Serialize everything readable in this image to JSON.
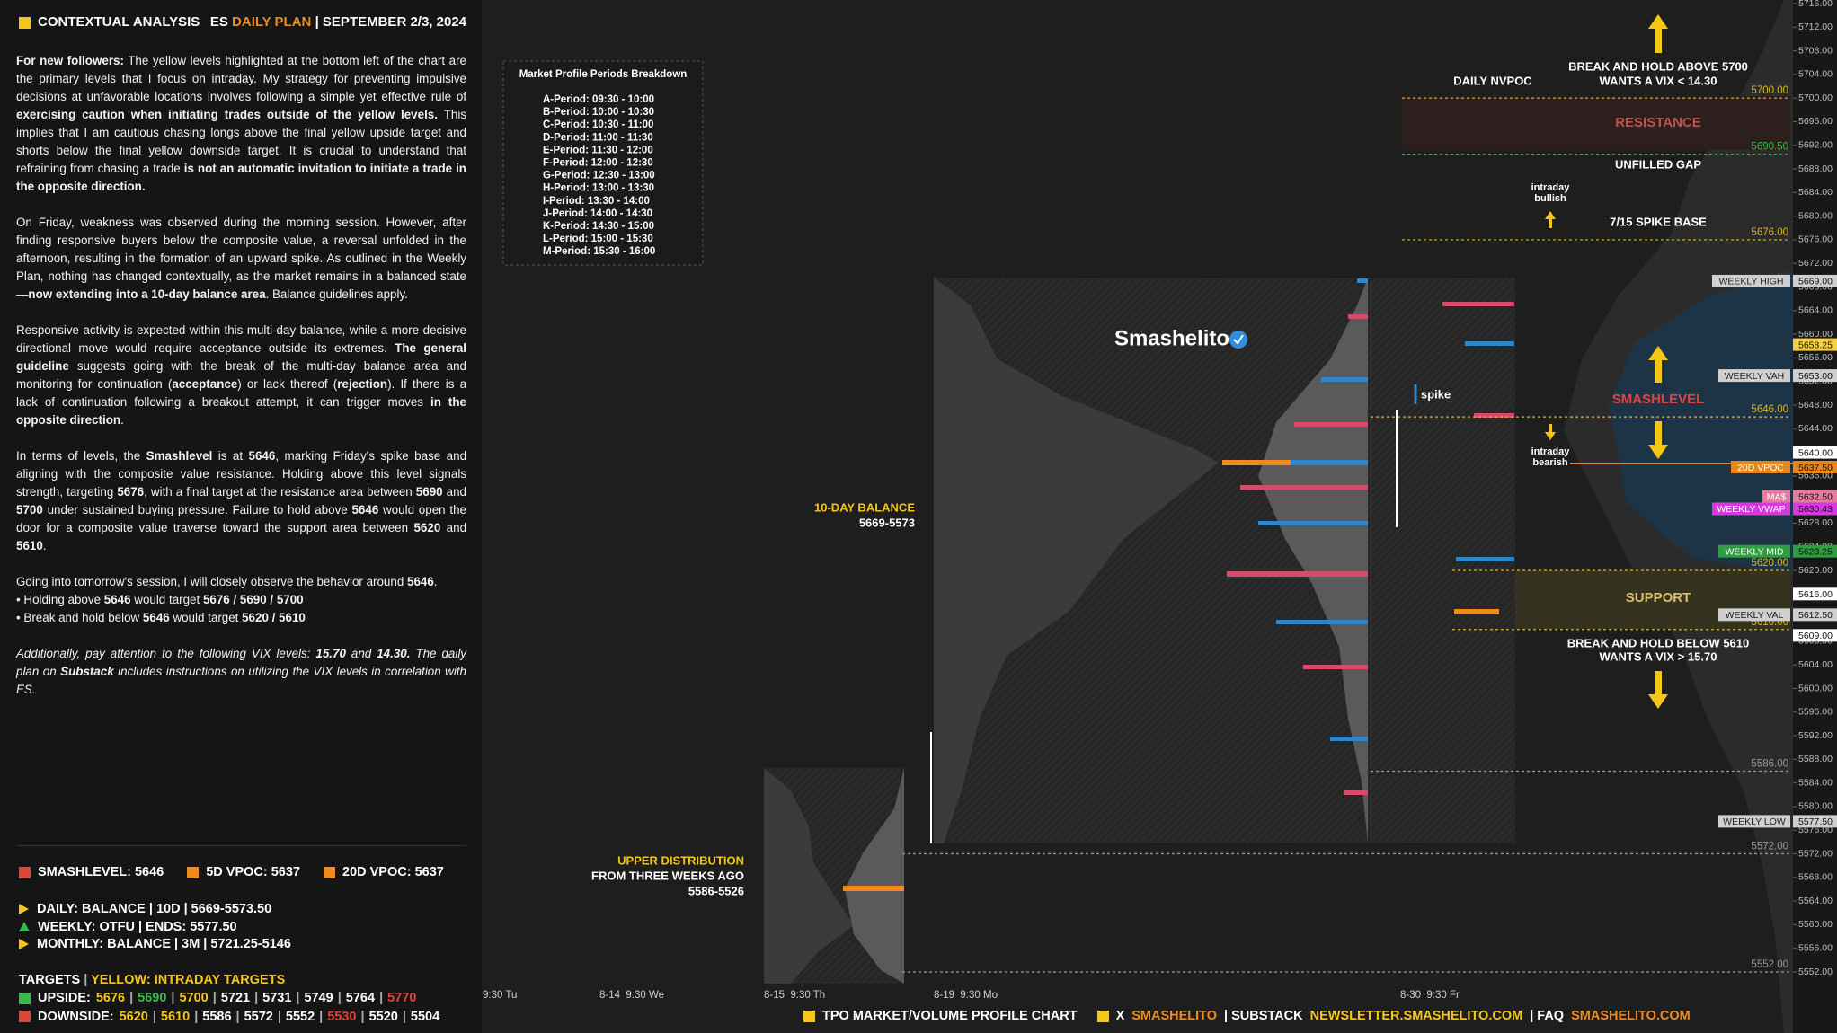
{
  "panel": {
    "header": {
      "title": "CONTEXTUAL ANALYSIS",
      "symbol": "ES",
      "plan": "DAILY PLAN",
      "date": "| SEPTEMBER 2/3, 2024"
    },
    "paragraphs": [
      [
        {
          "text": "For new followers:",
          "bold": true
        },
        {
          "text": " The yellow levels highlighted at the bottom left of the chart are the primary levels that I focus on intraday. My strategy for preventing impulsive decisions at unfavorable locations involves following a simple yet effective rule of "
        },
        {
          "text": "exercising caution when initiating trades outside of the yellow levels.",
          "bold": true
        },
        {
          "text": " This implies that I am cautious chasing longs above the final yellow upside target and shorts below the final yellow downside target. It is crucial to understand that refraining from chasing a trade "
        },
        {
          "text": "is not an automatic invitation to initiate a trade in the opposite direction.",
          "bold": true
        }
      ],
      [
        {
          "text": "On Friday, weakness was observed during the morning session. However, after finding responsive buyers below the composite value, a reversal unfolded in the afternoon, resulting in the formation of an upward spike. As outlined in the Weekly Plan, nothing has changed contextually, as the market remains in a balanced state—"
        },
        {
          "text": "now extending into a 10-day balance area",
          "bold": true
        },
        {
          "text": ". Balance guidelines apply."
        }
      ],
      [
        {
          "text": "Responsive activity is expected within this multi-day balance, while a more decisive directional move would require acceptance outside its extremes. "
        },
        {
          "text": "The general guideline",
          "bold": true
        },
        {
          "text": " suggests going with the break of the multi-day balance area and monitoring for continuation ("
        },
        {
          "text": "acceptance",
          "bold": true
        },
        {
          "text": ") or lack thereof ("
        },
        {
          "text": "rejection",
          "bold": true
        },
        {
          "text": "). If there is a lack of continuation following a breakout attempt, it can trigger moves "
        },
        {
          "text": "in the opposite direction",
          "bold": true
        },
        {
          "text": "."
        }
      ],
      [
        {
          "text": "In terms of levels, the "
        },
        {
          "text": "Smashlevel",
          "bold": true
        },
        {
          "text": " is at "
        },
        {
          "text": "5646",
          "bold": true
        },
        {
          "text": ", marking Friday's spike base and aligning with the composite value resistance. Holding above this level signals strength, targeting "
        },
        {
          "text": "5676",
          "bold": true
        },
        {
          "text": ", with a final target at the resistance area between "
        },
        {
          "text": "5690",
          "bold": true
        },
        {
          "text": " and "
        },
        {
          "text": "5700",
          "bold": true
        },
        {
          "text": " under sustained buying pressure. Failure to hold above "
        },
        {
          "text": "5646",
          "bold": true
        },
        {
          "text": " would open the door for a composite value traverse toward the support area between "
        },
        {
          "text": "5620",
          "bold": true
        },
        {
          "text": " and "
        },
        {
          "text": "5610",
          "bold": true
        },
        {
          "text": "."
        }
      ]
    ],
    "outlook": [
      [
        {
          "text": "Going into tomorrow's session, I will closely observe the behavior around "
        },
        {
          "text": "5646",
          "bold": true
        },
        {
          "text": "."
        }
      ],
      [
        {
          "text": "• Holding above "
        },
        {
          "text": "5646",
          "bold": true
        },
        {
          "text": " would target "
        },
        {
          "text": "5676 / 5690 / 5700",
          "bold": true
        }
      ],
      [
        {
          "text": "• Break and hold below "
        },
        {
          "text": "5646",
          "bold": true
        },
        {
          "text": " would target "
        },
        {
          "text": "5620 / 5610",
          "bold": true
        }
      ]
    ],
    "note": [
      {
        "text": "Additionally, pay attention to the following VIX levels: "
      },
      {
        "text": "15.70",
        "bold": true
      },
      {
        "text": " and "
      },
      {
        "text": "14.30.",
        "bold": true
      },
      {
        "text": " The daily plan on "
      },
      {
        "text": "Substack",
        "bold": true
      },
      {
        "text": " includes instructions on utilizing the VIX levels in correlation with ES."
      }
    ],
    "legend": [
      {
        "text": "SMASHLEVEL: 5646",
        "color": "#e0443a"
      },
      {
        "text": "5D VPOC: 5637",
        "color": "#f08a1c"
      },
      {
        "text": "20D VPOC: 5637",
        "color": "#f08a1c"
      }
    ],
    "context": [
      {
        "text": "DAILY: BALANCE | 10D | 5669-5573.50",
        "color": "#f5c518",
        "shape": "right"
      },
      {
        "text": "WEEKLY: OTFU | ENDS: 5577.50",
        "color": "#3bb84a",
        "shape": "up"
      },
      {
        "text": "MONTHLY: BALANCE | 3M | 5721.25-5146",
        "color": "#f5c518",
        "shape": "right"
      }
    ],
    "targets_title": "TARGETS",
    "targets_note": "YELLOW: INTRADAY TARGETS",
    "targets": [
      {
        "label": "UPSIDE:",
        "color": "#3bb84a",
        "values": [
          "5676",
          "5690",
          "5700",
          "5721",
          "5731",
          "5749",
          "5764",
          "5770"
        ],
        "colors": [
          "#f5c518",
          "#3bb84a",
          "#f5c518",
          "#ffffff",
          "#ffffff",
          "#ffffff",
          "#ffffff",
          "#e0443a"
        ]
      },
      {
        "label": "DOWNSIDE:",
        "color": "#e0443a",
        "values": [
          "5620",
          "5610",
          "5586",
          "5572",
          "5552",
          "5530",
          "5520",
          "5504"
        ],
        "colors": [
          "#f5c518",
          "#f5c518",
          "#ffffff",
          "#ffffff",
          "#ffffff",
          "#e0443a",
          "#ffffff",
          "#ffffff"
        ]
      }
    ]
  },
  "periods": {
    "title": "Market Profile Periods Breakdown",
    "items": [
      "A-Period: 09:30 - 10:00",
      "B-Period: 10:00 - 10:30",
      "C-Period: 10:30 - 11:00",
      "D-Period: 11:00 - 11:30",
      "E-Period: 11:30 - 12:00",
      "F-Period: 12:00 - 12:30",
      "G-Period: 12:30 - 13:00",
      "H-Period: 13:00 - 13:30",
      "I-Period: 13:30 - 14:00",
      "J-Period: 14:00 - 14:30",
      "K-Period: 14:30 - 15:00",
      "L-Period: 15:00 - 15:30",
      "M-Period: 15:30 - 16:00"
    ]
  },
  "chart_data": {
    "type": "tpo",
    "ylim": [
      5552,
      5716
    ],
    "yticks": [
      {
        "value": 5552,
        "label": "5552.00"
      },
      {
        "value": 5556,
        "label": "5556.00"
      },
      {
        "value": 5560,
        "label": "5560.00"
      },
      {
        "value": 5564,
        "label": "5564.00"
      },
      {
        "value": 5568,
        "label": "5568.00"
      },
      {
        "value": 5572,
        "label": "5572.00"
      },
      {
        "value": 5576,
        "label": "5576.00"
      },
      {
        "value": 5580,
        "label": "5580.00"
      },
      {
        "value": 5584,
        "label": "5584.00"
      },
      {
        "value": 5588,
        "label": "5588.00"
      },
      {
        "value": 5592,
        "label": "5592.00"
      },
      {
        "value": 5596,
        "label": "5596.00"
      },
      {
        "value": 5600,
        "label": "5600.00"
      },
      {
        "value": 5604,
        "label": "5604.00"
      },
      {
        "value": 5608,
        "label": "5608.00"
      },
      {
        "value": 5612,
        "label": "5612.00"
      },
      {
        "value": 5616,
        "label": "5616.00"
      },
      {
        "value": 5620,
        "label": "5620.00"
      },
      {
        "value": 5624,
        "label": "5624.00"
      },
      {
        "value": 5628,
        "label": "5628.00"
      },
      {
        "value": 5632,
        "label": "5632.00"
      },
      {
        "value": 5636,
        "label": "5636.00"
      },
      {
        "value": 5640,
        "label": "5640.00"
      },
      {
        "value": 5644,
        "label": "5644.00"
      },
      {
        "value": 5648,
        "label": "5648.00"
      },
      {
        "value": 5652,
        "label": "5652.00"
      },
      {
        "value": 5656,
        "label": "5656.00"
      },
      {
        "value": 5660,
        "label": "5660.00"
      },
      {
        "value": 5664,
        "label": "5664.00"
      },
      {
        "value": 5668,
        "label": "5668.00"
      },
      {
        "value": 5672,
        "label": "5672.00"
      },
      {
        "value": 5676,
        "label": "5676.00"
      },
      {
        "value": 5680,
        "label": "5680.00"
      },
      {
        "value": 5684,
        "label": "5684.00"
      },
      {
        "value": 5688,
        "label": "5688.00"
      },
      {
        "value": 5692,
        "label": "5692.00"
      },
      {
        "value": 5696,
        "label": "5696.00"
      },
      {
        "value": 5700,
        "label": "5700.00"
      },
      {
        "value": 5704,
        "label": "5704.00"
      },
      {
        "value": 5708,
        "label": "5708.00"
      },
      {
        "value": 5712,
        "label": "5712.00"
      },
      {
        "value": 5716,
        "label": "5716.00"
      }
    ],
    "levels": [
      {
        "value": 5700,
        "label": "5700.00",
        "color": "#d9b526"
      },
      {
        "value": 5690.5,
        "label": "5690.50",
        "color": "#3bb84a"
      },
      {
        "value": 5676,
        "label": "5676.00",
        "color": "#d9b526"
      },
      {
        "value": 5646,
        "label": "5646.00",
        "color": "#d9b526"
      },
      {
        "value": 5620,
        "label": "5620.00",
        "color": "#d9b526"
      },
      {
        "value": 5610,
        "label": "5610.00",
        "color": "#d9b526"
      },
      {
        "value": 5586,
        "label": "5586.00",
        "color": "#9a9a9a"
      },
      {
        "value": 5572,
        "label": "5572.00",
        "color": "#9a9a9a"
      },
      {
        "value": 5552,
        "label": "5552.00",
        "color": "#9a9a9a"
      }
    ],
    "badges": [
      {
        "name": "WEEKLY HIGH",
        "value": 5669,
        "label": "5669.00",
        "color": "#cfcfcf"
      },
      {
        "value": 5658.25,
        "label": "5658.25",
        "color": "#f5d040"
      },
      {
        "name": "WEEKLY VAH",
        "value": 5653,
        "label": "5653.00",
        "color": "#cfcfcf"
      },
      {
        "value": 5640,
        "label": "5640.00",
        "color": "#ffffff"
      },
      {
        "name": "20D VPOC",
        "value": 5637.5,
        "label": "5637.50",
        "color": "#e8861a"
      },
      {
        "name": "MA$",
        "value": 5632.5,
        "label": "5632.50",
        "color": "#e87aa0"
      },
      {
        "name": "WEEKLY VWAP",
        "value": 5630.43,
        "label": "5630.43",
        "color": "#d63adf"
      },
      {
        "name": "WEEKLY MID",
        "value": 5623.25,
        "label": "5623.25",
        "color": "#2e9e40"
      },
      {
        "value": 5616,
        "label": "5616.00",
        "color": "#ffffff"
      },
      {
        "name": "WEEKLY VAL",
        "value": 5612.5,
        "label": "5612.50",
        "color": "#cfcfcf"
      },
      {
        "value": 5609,
        "label": "5609.00",
        "color": "#ffffff"
      },
      {
        "name": "WEEKLY LOW",
        "value": 5577.5,
        "label": "5577.50",
        "color": "#cfcfcf"
      }
    ],
    "x_labels": [
      "9:30 Tu",
      "8-14  9:30 We",
      "8-15  9:30 Th",
      "8-19  9:30 Mo",
      "8-30  9:30 Fr"
    ],
    "annotations": [
      "DAILY NVPOC",
      "BREAK AND HOLD ABOVE 5700",
      "WANTS A VIX < 14.30",
      "RESISTANCE",
      "UNFILLED GAP",
      "intraday",
      "bullish",
      "7/15 SPIKE BASE",
      "SMASHLEVEL",
      "intraday",
      "bearish",
      "SUPPORT",
      "BREAK AND HOLD BELOW 5610",
      "WANTS A VIX > 15.70",
      "10-DAY BALANCE",
      "5669-5573",
      "UPPER DISTRIBUTION",
      "FROM THREE WEEKS AGO",
      "5586-5526",
      "Smashelito",
      "spike"
    ]
  },
  "footer": [
    "TPO MARKET/VOLUME PROFILE CHART",
    "X",
    "SMASHELITO",
    "| SUBSTACK",
    "NEWSLETTER.SMASHELITO.COM",
    "| FAQ",
    "SMASHELITO.COM"
  ]
}
